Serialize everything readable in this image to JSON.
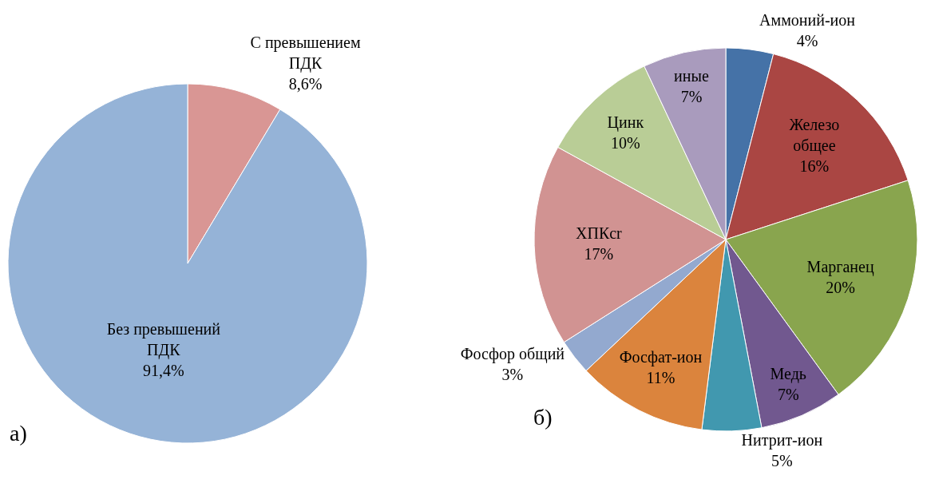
{
  "chart_data": [
    {
      "type": "pie",
      "categories": [
        "С превышением ПДК",
        "Без превышений ПДК"
      ],
      "values": [
        8.6,
        91.4
      ],
      "colors": [
        "#d99694",
        "#95b3d7"
      ],
      "value_labels": [
        "8,6%",
        "91,4%"
      ],
      "legend": false,
      "annotations": [
        "а)"
      ]
    },
    {
      "type": "pie",
      "categories": [
        "Аммоний-ион",
        "Железо общее",
        "Марганец",
        "Медь",
        "Нитрит-ион",
        "Фосфат-ион",
        "Фосфор общий",
        "ХПКcr",
        "Цинк",
        "иные"
      ],
      "values": [
        4,
        16,
        20,
        7,
        5,
        11,
        3,
        17,
        10,
        7
      ],
      "colors": [
        "#4572a7",
        "#aa4643",
        "#89a54e",
        "#71588f",
        "#4198af",
        "#db843d",
        "#93a9cf",
        "#d19392",
        "#b9cd96",
        "#a99bbd"
      ],
      "value_labels": [
        "4%",
        "16%",
        "20%",
        "7%",
        "5%",
        "11%",
        "3%",
        "17%",
        "10%",
        "7%"
      ],
      "legend": false,
      "annotations": [
        "б)"
      ]
    }
  ]
}
